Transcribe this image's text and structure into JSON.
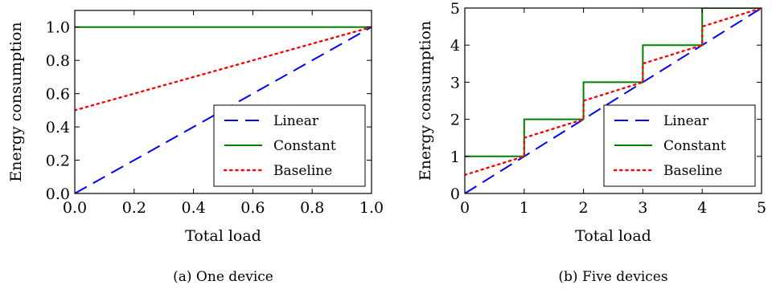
{
  "chart_data": [
    {
      "type": "line",
      "caption": "(a) One device",
      "xlabel": "Total load",
      "ylabel": "Energy consumption",
      "xlim": [
        0,
        1
      ],
      "ylim": [
        0,
        1.1
      ],
      "xticks": [
        0.0,
        0.2,
        0.4,
        0.6,
        0.8,
        1.0
      ],
      "xtick_labels": [
        "0.0",
        "0.2",
        "0.4",
        "0.6",
        "0.8",
        "1.0"
      ],
      "yticks": [
        0.0,
        0.2,
        0.4,
        0.6,
        0.8,
        1.0
      ],
      "ytick_labels": [
        "0.0",
        "0.2",
        "0.4",
        "0.6",
        "0.8",
        "1.0"
      ],
      "legend_position": "bottom-right",
      "series": [
        {
          "name": "Linear",
          "color": "#0000ff",
          "style": "dashed",
          "x": [
            0,
            1
          ],
          "y": [
            0,
            1
          ]
        },
        {
          "name": "Constant",
          "color": "#008000",
          "style": "solid",
          "x": [
            0,
            1
          ],
          "y": [
            1,
            1
          ]
        },
        {
          "name": "Baseline",
          "color": "#ff0000",
          "style": "dotted",
          "x": [
            0,
            1
          ],
          "y": [
            0.5,
            1
          ]
        }
      ]
    },
    {
      "type": "line",
      "caption": "(b) Five devices",
      "xlabel": "Total load",
      "ylabel": "Energy consumption",
      "xlim": [
        0,
        5
      ],
      "ylim": [
        0,
        5
      ],
      "xticks": [
        0,
        1,
        2,
        3,
        4,
        5
      ],
      "xtick_labels": [
        "0",
        "1",
        "2",
        "3",
        "4",
        "5"
      ],
      "yticks": [
        0,
        1,
        2,
        3,
        4,
        5
      ],
      "ytick_labels": [
        "0",
        "1",
        "2",
        "3",
        "4",
        "5"
      ],
      "legend_position": "bottom-right",
      "series": [
        {
          "name": "Linear",
          "color": "#0000ff",
          "style": "dashed",
          "x": [
            0,
            5
          ],
          "y": [
            0,
            5
          ]
        },
        {
          "name": "Constant",
          "color": "#008000",
          "style": "solid",
          "x": [
            0,
            1,
            1,
            2,
            2,
            3,
            3,
            4,
            4,
            5
          ],
          "y": [
            1,
            1,
            2,
            2,
            3,
            3,
            4,
            4,
            5,
            5
          ]
        },
        {
          "name": "Baseline",
          "color": "#ff0000",
          "style": "dotted",
          "x": [
            0,
            1,
            1,
            2,
            2,
            3,
            3,
            4,
            4,
            5
          ],
          "y": [
            0.5,
            1,
            1.5,
            2,
            2.5,
            3,
            3.5,
            4,
            4.5,
            5
          ]
        }
      ]
    }
  ]
}
